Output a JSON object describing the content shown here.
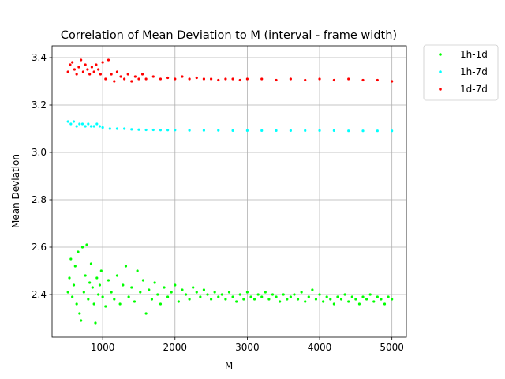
{
  "chart_data": {
    "type": "scatter",
    "title": "Correlation of Mean Deviation to M (interval - frame width)",
    "xlabel": "M",
    "ylabel": "Mean Deviation",
    "xlim": [
      300,
      5200
    ],
    "ylim": [
      2.22,
      3.45
    ],
    "xticks": [
      1000,
      2000,
      3000,
      4000,
      5000
    ],
    "yticks": [
      2.4,
      2.6,
      2.8,
      3.0,
      3.2,
      3.4
    ],
    "grid": true,
    "legend_position": "outside-top-right",
    "series": [
      {
        "name": "1h-1d",
        "color": "#00ff00",
        "points": [
          [
            520,
            2.41
          ],
          [
            540,
            2.47
          ],
          [
            560,
            2.55
          ],
          [
            580,
            2.39
          ],
          [
            600,
            2.44
          ],
          [
            620,
            2.52
          ],
          [
            640,
            2.36
          ],
          [
            660,
            2.58
          ],
          [
            680,
            2.32
          ],
          [
            700,
            2.29
          ],
          [
            720,
            2.6
          ],
          [
            740,
            2.41
          ],
          [
            760,
            2.48
          ],
          [
            780,
            2.61
          ],
          [
            800,
            2.38
          ],
          [
            820,
            2.45
          ],
          [
            840,
            2.53
          ],
          [
            860,
            2.43
          ],
          [
            880,
            2.36
          ],
          [
            900,
            2.28
          ],
          [
            920,
            2.47
          ],
          [
            940,
            2.4
          ],
          [
            960,
            2.44
          ],
          [
            980,
            2.5
          ],
          [
            1000,
            2.39
          ],
          [
            1040,
            2.35
          ],
          [
            1080,
            2.46
          ],
          [
            1120,
            2.41
          ],
          [
            1160,
            2.38
          ],
          [
            1200,
            2.48
          ],
          [
            1240,
            2.36
          ],
          [
            1280,
            2.44
          ],
          [
            1320,
            2.52
          ],
          [
            1360,
            2.39
          ],
          [
            1400,
            2.43
          ],
          [
            1440,
            2.37
          ],
          [
            1480,
            2.5
          ],
          [
            1520,
            2.41
          ],
          [
            1560,
            2.46
          ],
          [
            1600,
            2.32
          ],
          [
            1640,
            2.42
          ],
          [
            1680,
            2.38
          ],
          [
            1720,
            2.45
          ],
          [
            1760,
            2.4
          ],
          [
            1800,
            2.36
          ],
          [
            1850,
            2.43
          ],
          [
            1900,
            2.39
          ],
          [
            1950,
            2.41
          ],
          [
            2000,
            2.44
          ],
          [
            2050,
            2.37
          ],
          [
            2100,
            2.42
          ],
          [
            2150,
            2.4
          ],
          [
            2200,
            2.38
          ],
          [
            2250,
            2.43
          ],
          [
            2300,
            2.41
          ],
          [
            2350,
            2.39
          ],
          [
            2400,
            2.42
          ],
          [
            2450,
            2.4
          ],
          [
            2500,
            2.38
          ],
          [
            2550,
            2.41
          ],
          [
            2600,
            2.39
          ],
          [
            2650,
            2.4
          ],
          [
            2700,
            2.38
          ],
          [
            2750,
            2.41
          ],
          [
            2800,
            2.39
          ],
          [
            2850,
            2.37
          ],
          [
            2900,
            2.4
          ],
          [
            2950,
            2.38
          ],
          [
            3000,
            2.41
          ],
          [
            3050,
            2.39
          ],
          [
            3100,
            2.38
          ],
          [
            3150,
            2.4
          ],
          [
            3200,
            2.39
          ],
          [
            3250,
            2.41
          ],
          [
            3300,
            2.38
          ],
          [
            3350,
            2.4
          ],
          [
            3400,
            2.39
          ],
          [
            3450,
            2.37
          ],
          [
            3500,
            2.4
          ],
          [
            3550,
            2.38
          ],
          [
            3600,
            2.39
          ],
          [
            3650,
            2.4
          ],
          [
            3700,
            2.38
          ],
          [
            3750,
            2.41
          ],
          [
            3800,
            2.37
          ],
          [
            3850,
            2.39
          ],
          [
            3900,
            2.42
          ],
          [
            3950,
            2.38
          ],
          [
            4000,
            2.4
          ],
          [
            4050,
            2.37
          ],
          [
            4100,
            2.39
          ],
          [
            4150,
            2.38
          ],
          [
            4200,
            2.36
          ],
          [
            4250,
            2.39
          ],
          [
            4300,
            2.38
          ],
          [
            4350,
            2.4
          ],
          [
            4400,
            2.37
          ],
          [
            4450,
            2.39
          ],
          [
            4500,
            2.38
          ],
          [
            4550,
            2.36
          ],
          [
            4600,
            2.39
          ],
          [
            4650,
            2.38
          ],
          [
            4700,
            2.4
          ],
          [
            4750,
            2.37
          ],
          [
            4800,
            2.39
          ],
          [
            4850,
            2.38
          ],
          [
            4900,
            2.36
          ],
          [
            4950,
            2.39
          ],
          [
            5000,
            2.38
          ]
        ]
      },
      {
        "name": "1h-7d",
        "color": "#00ffff",
        "points": [
          [
            520,
            3.13
          ],
          [
            560,
            3.12
          ],
          [
            600,
            3.13
          ],
          [
            640,
            3.11
          ],
          [
            680,
            3.12
          ],
          [
            720,
            3.12
          ],
          [
            760,
            3.11
          ],
          [
            800,
            3.12
          ],
          [
            840,
            3.11
          ],
          [
            880,
            3.11
          ],
          [
            920,
            3.12
          ],
          [
            960,
            3.11
          ],
          [
            1000,
            3.105
          ],
          [
            1100,
            3.1
          ],
          [
            1200,
            3.1
          ],
          [
            1300,
            3.1
          ],
          [
            1400,
            3.097
          ],
          [
            1500,
            3.096
          ],
          [
            1600,
            3.095
          ],
          [
            1700,
            3.095
          ],
          [
            1800,
            3.094
          ],
          [
            1900,
            3.094
          ],
          [
            2000,
            3.094
          ],
          [
            2200,
            3.093
          ],
          [
            2400,
            3.093
          ],
          [
            2600,
            3.093
          ],
          [
            2800,
            3.092
          ],
          [
            3000,
            3.092
          ],
          [
            3200,
            3.092
          ],
          [
            3400,
            3.092
          ],
          [
            3600,
            3.092
          ],
          [
            3800,
            3.092
          ],
          [
            4000,
            3.092
          ],
          [
            4200,
            3.092
          ],
          [
            4400,
            3.091
          ],
          [
            4600,
            3.091
          ],
          [
            4800,
            3.091
          ],
          [
            5000,
            3.091
          ]
        ]
      },
      {
        "name": "1d-7d",
        "color": "#ff0000",
        "points": [
          [
            520,
            3.34
          ],
          [
            550,
            3.37
          ],
          [
            580,
            3.38
          ],
          [
            610,
            3.35
          ],
          [
            640,
            3.33
          ],
          [
            670,
            3.36
          ],
          [
            700,
            3.39
          ],
          [
            730,
            3.34
          ],
          [
            760,
            3.37
          ],
          [
            790,
            3.35
          ],
          [
            820,
            3.33
          ],
          [
            850,
            3.36
          ],
          [
            880,
            3.34
          ],
          [
            910,
            3.37
          ],
          [
            940,
            3.35
          ],
          [
            970,
            3.33
          ],
          [
            1000,
            3.38
          ],
          [
            1040,
            3.31
          ],
          [
            1080,
            3.39
          ],
          [
            1120,
            3.33
          ],
          [
            1160,
            3.3
          ],
          [
            1200,
            3.34
          ],
          [
            1250,
            3.32
          ],
          [
            1300,
            3.31
          ],
          [
            1350,
            3.33
          ],
          [
            1400,
            3.3
          ],
          [
            1450,
            3.32
          ],
          [
            1500,
            3.31
          ],
          [
            1550,
            3.33
          ],
          [
            1600,
            3.31
          ],
          [
            1700,
            3.32
          ],
          [
            1800,
            3.31
          ],
          [
            1900,
            3.315
          ],
          [
            2000,
            3.31
          ],
          [
            2100,
            3.32
          ],
          [
            2200,
            3.31
          ],
          [
            2300,
            3.315
          ],
          [
            2400,
            3.31
          ],
          [
            2500,
            3.31
          ],
          [
            2600,
            3.305
          ],
          [
            2700,
            3.31
          ],
          [
            2800,
            3.31
          ],
          [
            2900,
            3.305
          ],
          [
            3000,
            3.31
          ],
          [
            3200,
            3.31
          ],
          [
            3400,
            3.305
          ],
          [
            3600,
            3.31
          ],
          [
            3800,
            3.305
          ],
          [
            4000,
            3.31
          ],
          [
            4200,
            3.305
          ],
          [
            4400,
            3.31
          ],
          [
            4600,
            3.305
          ],
          [
            4800,
            3.305
          ],
          [
            5000,
            3.3
          ]
        ]
      }
    ]
  }
}
